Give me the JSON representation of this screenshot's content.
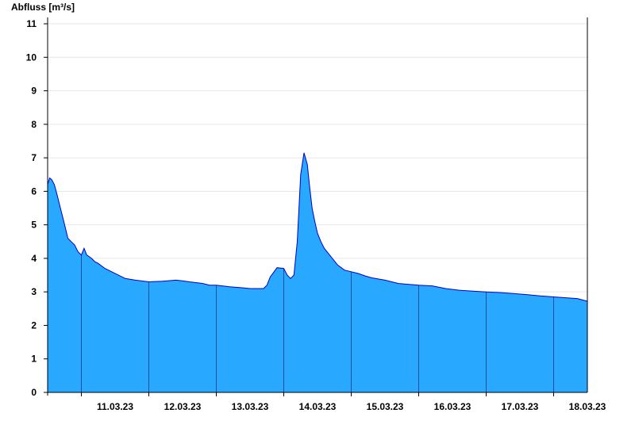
{
  "chart_data": {
    "type": "area",
    "ylabel": "Abfluss [m³/s]",
    "ylim": [
      0,
      11
    ],
    "yticks": [
      "0",
      "1",
      "2",
      "3",
      "4",
      "5",
      "6",
      "7",
      "8",
      "9",
      "10",
      "11"
    ],
    "xlim": [
      10.5,
      18.5
    ],
    "day_boundaries": [
      11,
      12,
      13,
      14,
      15,
      16,
      17,
      18
    ],
    "xtick_labels": [
      {
        "day": 11,
        "label": "11.03.23"
      },
      {
        "day": 12,
        "label": "12.03.23"
      },
      {
        "day": 13,
        "label": "13.03.23"
      },
      {
        "day": 14,
        "label": "14.03.23"
      },
      {
        "day": 15,
        "label": "15.03.23"
      },
      {
        "day": 16,
        "label": "16.03.23"
      },
      {
        "day": 17,
        "label": "17.03.23"
      },
      {
        "day": 18,
        "label": "18.03.23"
      }
    ],
    "grid": true,
    "fill_color": "#29a8ff",
    "line_color": "#0000cc",
    "series": [
      {
        "x": [
          10.5,
          10.53,
          10.56,
          10.6,
          10.64,
          10.69,
          10.74,
          10.8,
          10.85,
          10.9,
          10.95,
          11.0,
          11.04,
          11.08,
          11.15,
          11.2,
          11.25,
          11.35,
          11.5,
          11.65,
          11.8,
          12.0,
          12.2,
          12.4,
          12.5,
          12.6,
          12.8,
          12.9,
          13.0,
          13.2,
          13.4,
          13.5,
          13.6,
          13.7,
          13.75,
          13.8,
          13.9,
          14.0,
          14.05,
          14.1,
          14.15,
          14.2,
          14.25,
          14.3,
          14.35,
          14.38,
          14.42,
          14.46,
          14.5,
          14.55,
          14.6,
          14.7,
          14.8,
          14.9,
          15.0,
          15.1,
          15.2,
          15.3,
          15.5,
          15.7,
          16.0,
          16.2,
          16.4,
          16.6,
          16.8,
          17.0,
          17.2,
          17.4,
          17.6,
          17.8,
          18.0,
          18.2,
          18.35,
          18.5
        ],
        "y": [
          6.2,
          6.4,
          6.35,
          6.2,
          5.9,
          5.5,
          5.1,
          4.6,
          4.5,
          4.4,
          4.2,
          4.1,
          4.3,
          4.1,
          4.0,
          3.9,
          3.85,
          3.7,
          3.55,
          3.4,
          3.35,
          3.3,
          3.32,
          3.35,
          3.33,
          3.3,
          3.25,
          3.2,
          3.2,
          3.15,
          3.12,
          3.1,
          3.1,
          3.1,
          3.2,
          3.45,
          3.72,
          3.7,
          3.5,
          3.4,
          3.5,
          4.5,
          6.5,
          7.15,
          6.8,
          6.2,
          5.5,
          5.1,
          4.75,
          4.5,
          4.3,
          4.05,
          3.8,
          3.65,
          3.6,
          3.55,
          3.48,
          3.42,
          3.35,
          3.25,
          3.2,
          3.18,
          3.1,
          3.05,
          3.02,
          3.0,
          2.98,
          2.95,
          2.92,
          2.88,
          2.85,
          2.82,
          2.8,
          2.72
        ]
      }
    ]
  }
}
